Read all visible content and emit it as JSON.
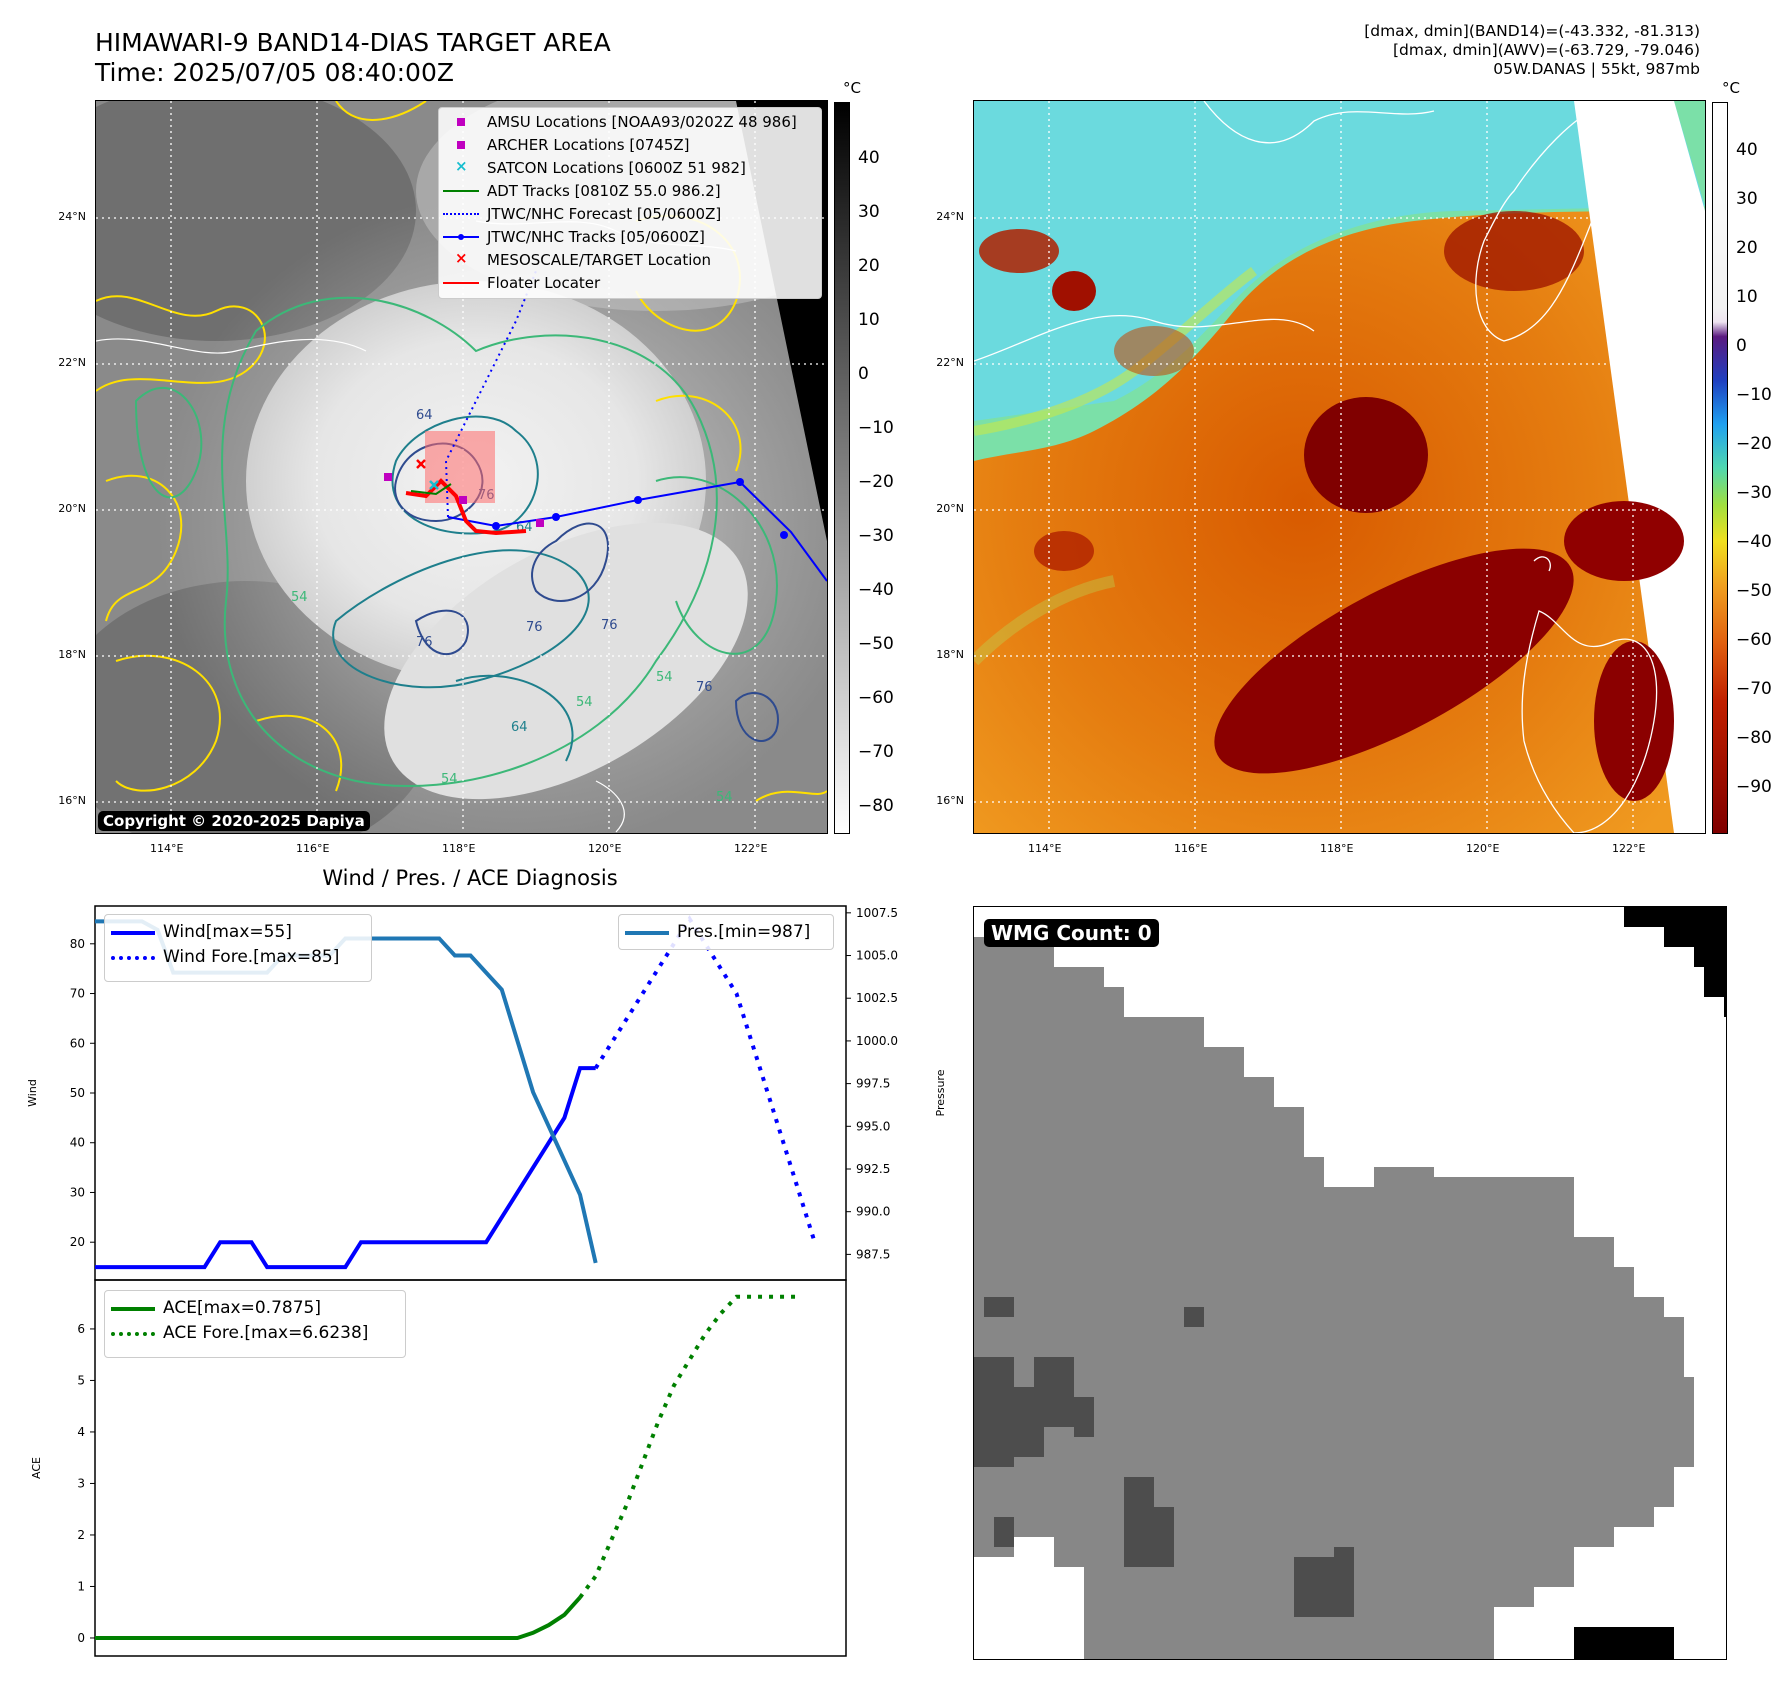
{
  "header": {
    "title_line1": "HIMAWARI-9 BAND14-DIAS TARGET AREA",
    "title_line2": "Time: 2025/07/05 08:40:00Z",
    "info_line1": "[dmax, dmin](BAND14)=(-43.332, -81.313)",
    "info_line2": "[dmax, dmin](AWV)=(-63.729, -79.046)",
    "info_line3": "05W.DANAS | 55kt, 987mb"
  },
  "map_ir": {
    "copyright": "Copyright © 2020-2025 Dapiya",
    "lat_ticks": [
      "24°N",
      "22°N",
      "20°N",
      "18°N",
      "16°N"
    ],
    "lon_ticks": [
      "114°E",
      "116°E",
      "118°E",
      "120°E",
      "122°E"
    ],
    "contour_labels": [
      "64",
      "76",
      "54",
      "54",
      "64",
      "76",
      "76",
      "76",
      "64",
      "54",
      "54",
      "76",
      "54"
    ],
    "legend": [
      {
        "label": "AMSU Locations [NOAA93/0202Z 48 986]",
        "color": "#c000c0",
        "style": "square"
      },
      {
        "label": "ARCHER Locations [0745Z]",
        "color": "#c000c0",
        "style": "square"
      },
      {
        "label": "SATCON Locations [0600Z 51 982]",
        "color": "#17becf",
        "style": "x"
      },
      {
        "label": "ADT Tracks [0810Z 55.0 986.2]",
        "color": "#008000",
        "style": "line"
      },
      {
        "label": "JTWC/NHC Forecast [05/0600Z]",
        "color": "#0000ff",
        "style": "dotted"
      },
      {
        "label": "JTWC/NHC Tracks [05/0600Z]",
        "color": "#0000ff",
        "style": "line-dot"
      },
      {
        "label": "MESOSCALE/TARGET Location",
        "color": "#ff0000",
        "style": "x"
      },
      {
        "label": "Floater Locater",
        "color": "#ff0000",
        "style": "line"
      }
    ],
    "colorbar": {
      "unit": "°C",
      "ticks": [
        "40",
        "30",
        "20",
        "10",
        "0",
        "−10",
        "−20",
        "−30",
        "−40",
        "−50",
        "−60",
        "−70",
        "−80"
      ]
    }
  },
  "map_awv": {
    "lat_ticks": [
      "24°N",
      "22°N",
      "20°N",
      "18°N",
      "16°N"
    ],
    "lon_ticks": [
      "114°E",
      "116°E",
      "118°E",
      "120°E",
      "122°E"
    ],
    "colorbar": {
      "unit": "°C",
      "ticks": [
        "40",
        "30",
        "20",
        "10",
        "0",
        "−10",
        "−20",
        "−30",
        "−40",
        "−50",
        "−60",
        "−70",
        "−80",
        "−90"
      ]
    }
  },
  "wmg": {
    "label": "WMG Count: 0"
  },
  "chart_data": [
    {
      "type": "line",
      "title": "Wind / Pres. / ACE Diagnosis",
      "ylabel": "Wind",
      "ylim": [
        12.4,
        87.6
      ],
      "y_ticks": [
        20,
        30,
        40,
        50,
        60,
        70,
        80
      ],
      "y2label": "Pressure",
      "y2lim": [
        986.0,
        1007.9
      ],
      "y2_ticks": [
        "987.5",
        "990.0",
        "992.5",
        "995.0",
        "997.5",
        "1000.0",
        "1002.5",
        "1005.0",
        "1007.5"
      ],
      "legend_left": [
        "Wind[max=55]",
        "Wind Fore.[max=85]"
      ],
      "legend_right": [
        "Pres.[min=987]"
      ],
      "series": [
        {
          "name": "Wind[max=55]",
          "color": "#0000ff",
          "style": "solid",
          "x": [
            0,
            7,
            8,
            10,
            11,
            13,
            16,
            17,
            25,
            26,
            27,
            28,
            29,
            30,
            31,
            32
          ],
          "values": [
            15,
            15,
            20,
            20,
            15,
            15,
            15,
            20,
            20,
            25,
            30,
            35,
            40,
            45,
            55,
            55
          ]
        },
        {
          "name": "Wind Fore.[max=85]",
          "color": "#0000ff",
          "style": "dotted",
          "x": [
            32,
            33,
            34,
            35,
            36,
            37,
            38,
            39,
            40,
            41,
            42,
            43,
            44,
            45,
            46
          ],
          "values": [
            55,
            60,
            65,
            70,
            75,
            80,
            85,
            80,
            75,
            70,
            60,
            50,
            40,
            30,
            20
          ]
        },
        {
          "name": "Pres.[min=987]",
          "color": "#1f77b4",
          "style": "solid",
          "axis": "right",
          "x": [
            0,
            2,
            3,
            4,
            5,
            7,
            8,
            9,
            10,
            11,
            12,
            13,
            14,
            15,
            16,
            17,
            18,
            19,
            20,
            21,
            22,
            23,
            24,
            25,
            26,
            27,
            28,
            29,
            30,
            31,
            32
          ],
          "values": [
            1007.0,
            1007.0,
            1007.0,
            1006.5,
            1004.0,
            1004.0,
            1004.0,
            1004.0,
            1004.0,
            1004.0,
            1005.0,
            1005.0,
            1005.0,
            1005.0,
            1006.0,
            1006.0,
            1006.0,
            1006.0,
            1006.0,
            1006.0,
            1006.0,
            1005.0,
            1005.0,
            1004.0,
            1003.0,
            1000.0,
            997.0,
            995.0,
            993.0,
            991.0,
            987.0
          ]
        }
      ]
    },
    {
      "type": "line",
      "ylabel": "ACE",
      "ylim": [
        -0.35,
        6.95
      ],
      "y_ticks": [
        0,
        1,
        2,
        3,
        4,
        5,
        6
      ],
      "legend": [
        "ACE[max=0.7875]",
        "ACE Fore.[max=6.6238]"
      ],
      "series": [
        {
          "name": "ACE[max=0.7875]",
          "color": "#008000",
          "style": "solid",
          "x": [
            0,
            27,
            28,
            29,
            30,
            31
          ],
          "values": [
            0,
            0,
            0.1,
            0.25,
            0.45,
            0.7875
          ]
        },
        {
          "name": "ACE Fore.[max=6.6238]",
          "color": "#008000",
          "style": "dotted",
          "x": [
            31,
            32,
            33,
            34,
            35,
            36,
            37,
            38,
            39,
            40,
            41,
            42,
            43,
            44,
            45
          ],
          "values": [
            0.7875,
            1.2,
            1.9,
            2.6,
            3.4,
            4.2,
            4.9,
            5.4,
            5.9,
            6.3,
            6.6238,
            6.6238,
            6.6238,
            6.6238,
            6.6238
          ]
        }
      ]
    }
  ]
}
